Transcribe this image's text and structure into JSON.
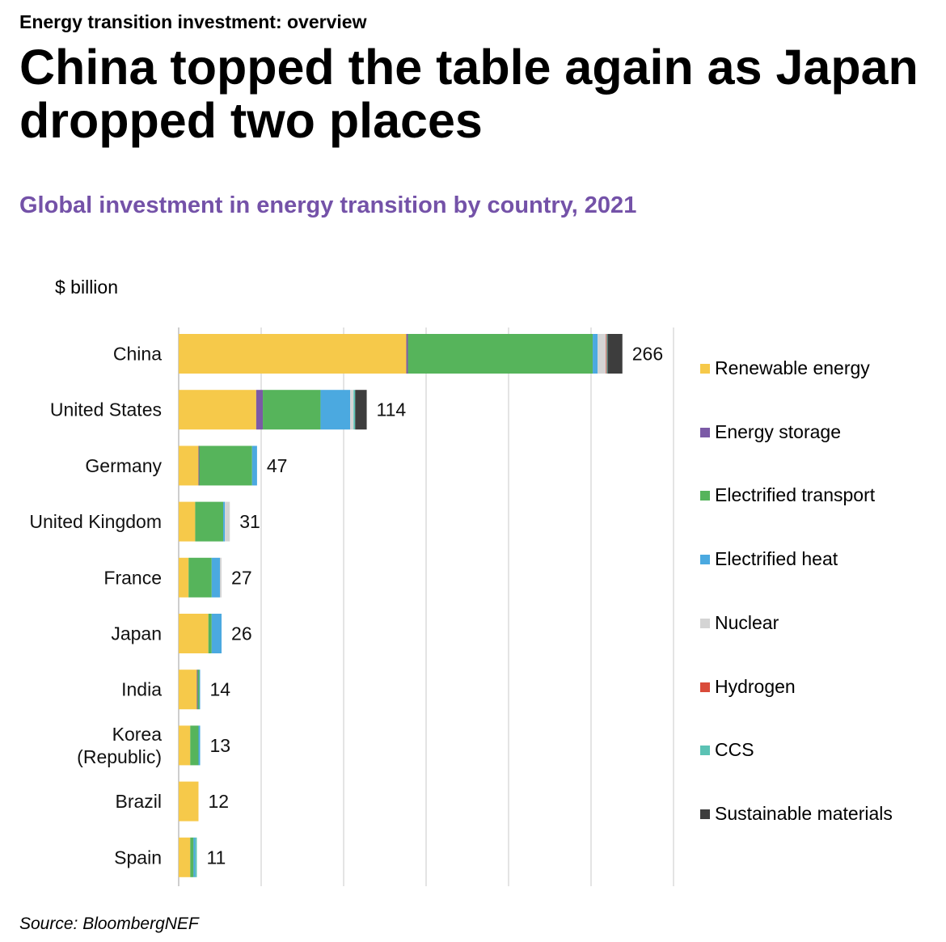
{
  "kicker": "Energy transition investment: overview",
  "headline": "China topped the table again as Japan dropped two places",
  "subtitle": "Global investment in energy transition by country, 2021",
  "colors": {
    "subtitle": "#7452a8"
  },
  "source": "Source: BloombergNEF",
  "chart_data": {
    "type": "bar",
    "orientation": "horizontal",
    "stacked": true,
    "title": "Global investment in energy transition by country, 2021",
    "unit_label": "$ billion",
    "xlim": [
      0,
      300
    ],
    "grid": true,
    "legend_position": "right",
    "categories": [
      "China",
      "United States",
      "Germany",
      "United Kingdom",
      "France",
      "Japan",
      "India",
      "Korea (Republic)",
      "Brazil",
      "Spain"
    ],
    "category_lines": [
      [
        "China"
      ],
      [
        "United States"
      ],
      [
        "Germany"
      ],
      [
        "United Kingdom"
      ],
      [
        "France"
      ],
      [
        "Japan"
      ],
      [
        "India"
      ],
      [
        "Korea",
        "(Republic)"
      ],
      [
        "Brazil"
      ],
      [
        "Spain"
      ]
    ],
    "totals": [
      266,
      114,
      47,
      31,
      27,
      26,
      14,
      13,
      12,
      11
    ],
    "series": [
      {
        "name": "Renewable energy",
        "color": "#f6c94a",
        "values": [
          138,
          47,
          12,
          10,
          6,
          18,
          11,
          7,
          12,
          7
        ]
      },
      {
        "name": "Energy storage",
        "color": "#7b5aa6",
        "values": [
          1,
          4,
          0.5,
          0,
          0,
          0,
          0.5,
          0,
          0,
          0
        ]
      },
      {
        "name": "Electrified transport",
        "color": "#56b45b",
        "values": [
          112,
          35,
          32,
          17,
          14,
          2,
          1,
          5,
          0,
          2
        ]
      },
      {
        "name": "Electrified heat",
        "color": "#4ba9e0",
        "values": [
          3,
          18,
          3,
          1,
          5,
          6,
          0.5,
          1,
          0,
          1
        ]
      },
      {
        "name": "Nuclear",
        "color": "#d4d4d4",
        "values": [
          5,
          2,
          0,
          3,
          1,
          0,
          0,
          0,
          0,
          0
        ]
      },
      {
        "name": "Hydrogen",
        "color": "#d94b3a",
        "values": [
          0.5,
          0,
          0,
          0,
          0,
          0,
          0,
          0,
          0,
          0
        ]
      },
      {
        "name": "CCS",
        "color": "#5bc2b4",
        "values": [
          0.5,
          1,
          0,
          0,
          0,
          0,
          0,
          0,
          0,
          1
        ]
      },
      {
        "name": "Sustainable materials",
        "color": "#3d3d3d",
        "values": [
          9,
          7,
          0,
          0,
          0,
          0,
          0,
          0,
          0,
          0
        ]
      }
    ]
  }
}
